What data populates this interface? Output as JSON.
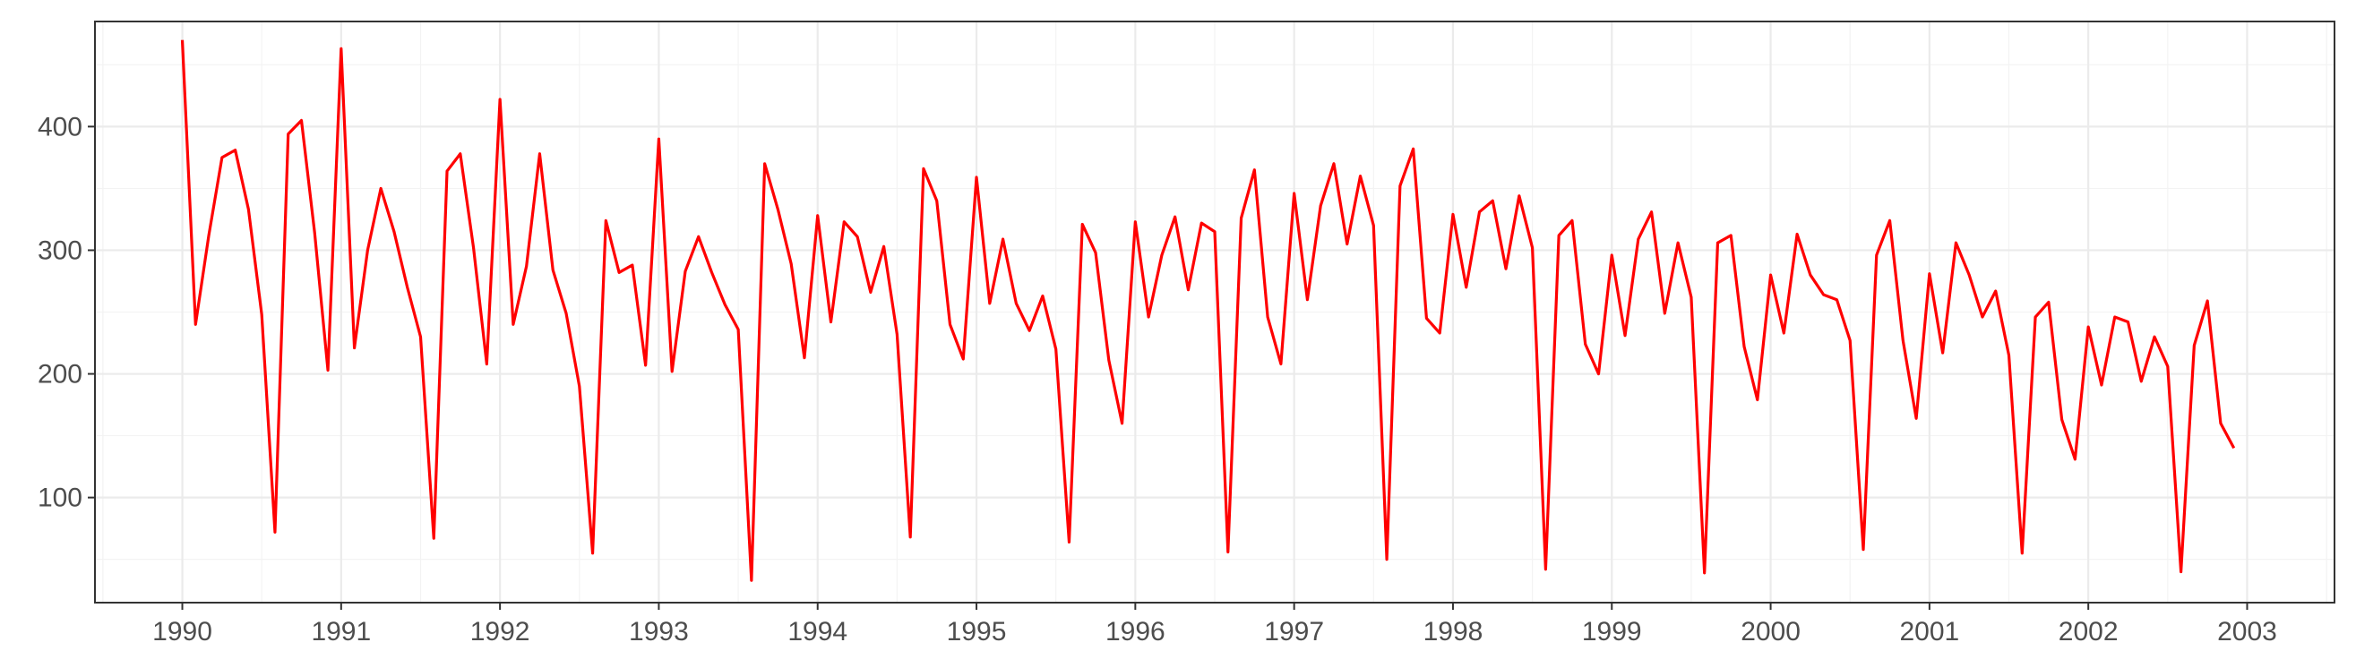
{
  "chart_data": {
    "type": "line",
    "title": "",
    "xlabel": "",
    "ylabel": "",
    "xlim": [
      1989.45,
      2003.55
    ],
    "ylim": [
      15,
      485
    ],
    "x_ticks": [
      1990,
      1991,
      1992,
      1993,
      1994,
      1995,
      1996,
      1997,
      1998,
      1999,
      2000,
      2001,
      2002,
      2003
    ],
    "y_ticks": [
      100,
      200,
      300,
      400
    ],
    "grid": true,
    "legend": "none",
    "line_color": "#ff0000",
    "x_start": 1990,
    "x_step": 0.08333333,
    "series": [
      {
        "values": [
          470,
          240,
          312,
          375,
          381,
          333,
          248,
          72,
          394,
          405,
          314,
          203,
          463,
          221,
          300,
          350,
          315,
          270,
          230,
          67,
          364,
          378,
          302,
          208,
          422,
          240,
          287,
          378,
          284,
          249,
          190,
          55,
          324,
          282,
          288,
          207,
          390,
          202,
          283,
          311,
          282,
          256,
          236,
          33,
          370,
          333,
          289,
          213,
          328,
          242,
          323,
          311,
          266,
          303,
          232,
          68,
          366,
          340,
          240,
          212,
          359,
          257,
          309,
          257,
          235,
          263,
          220,
          64,
          321,
          298,
          211,
          160,
          323,
          246,
          296,
          327,
          268,
          322,
          315,
          56,
          326,
          365,
          246,
          208,
          346,
          260,
          336,
          370,
          305,
          360,
          320,
          50,
          352,
          382,
          245,
          233,
          329,
          270,
          331,
          340,
          285,
          344,
          302,
          42,
          312,
          324,
          224,
          200,
          296,
          231,
          309,
          331,
          249,
          306,
          262,
          39,
          306,
          312,
          222,
          179,
          280,
          233,
          313,
          280,
          264,
          260,
          227,
          58,
          296,
          324,
          227,
          164,
          281,
          217,
          306,
          280,
          246,
          267,
          215,
          55,
          246,
          258,
          163,
          131,
          238,
          191,
          246,
          242,
          194,
          230,
          206,
          40,
          223,
          259,
          160,
          140
        ]
      }
    ]
  }
}
